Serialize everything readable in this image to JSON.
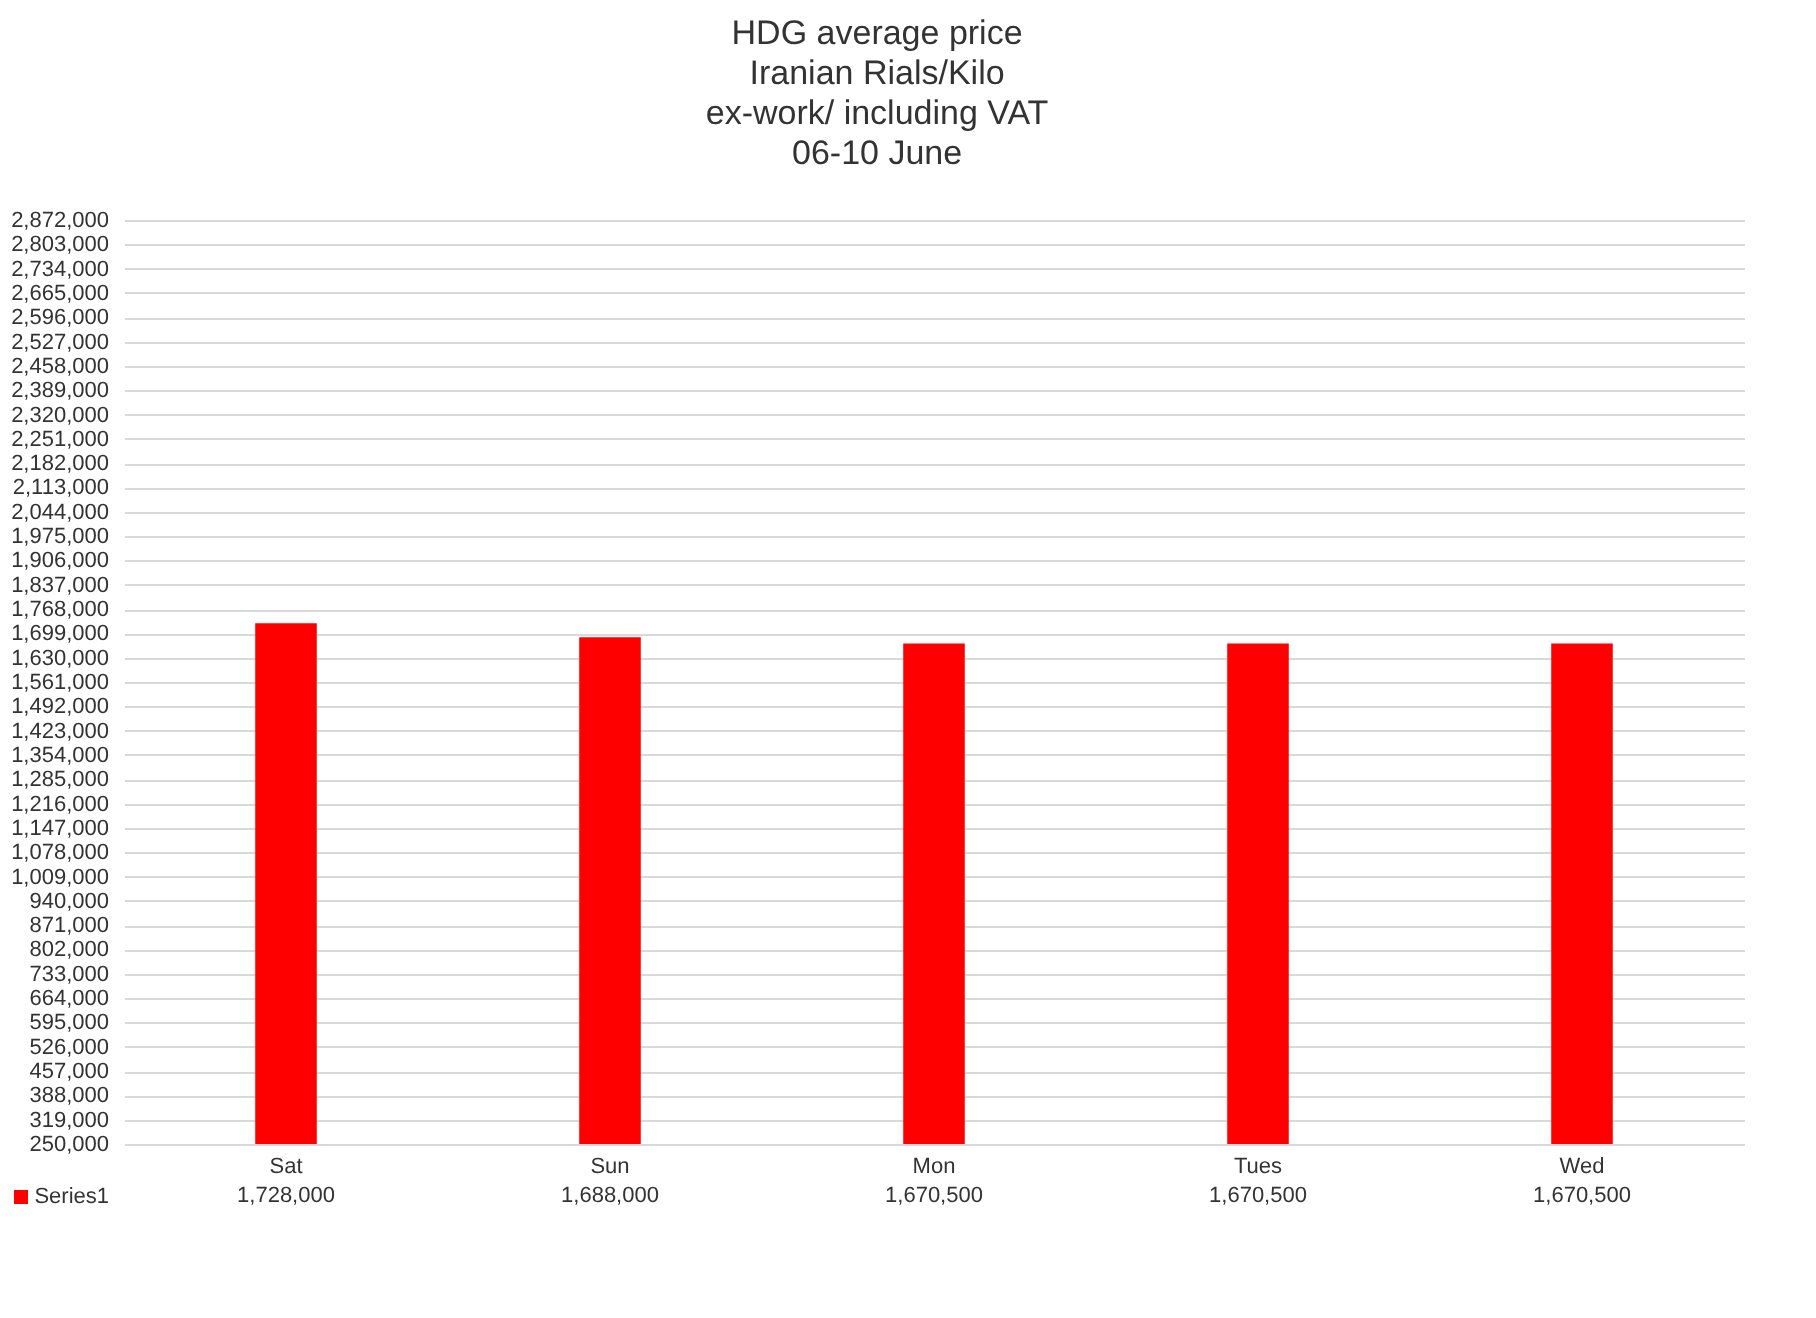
{
  "chart_data": {
    "type": "bar",
    "title": [
      "HDG average price",
      "Iranian Rials/Kilo",
      "ex-work/ including VAT",
      "06-10 June"
    ],
    "categories": [
      "Sat",
      "Sun",
      "Mon",
      "Tues",
      "Wed"
    ],
    "series": [
      {
        "name": "Series1",
        "color": "#ff0000",
        "values": [
          1728000,
          1688000,
          1670500,
          1670500,
          1670500
        ],
        "value_labels": [
          "1,728,000",
          "1,688,000",
          "1,670,500",
          "1,670,500",
          "1,670,500"
        ]
      }
    ],
    "ylim": [
      250000,
      2872000
    ],
    "yticks": [
      {
        "value": 250000,
        "label": "250,000"
      },
      {
        "value": 319000,
        "label": "319,000"
      },
      {
        "value": 388000,
        "label": "388,000"
      },
      {
        "value": 457000,
        "label": "457,000"
      },
      {
        "value": 526000,
        "label": "526,000"
      },
      {
        "value": 595000,
        "label": "595,000"
      },
      {
        "value": 664000,
        "label": "664,000"
      },
      {
        "value": 733000,
        "label": "733,000"
      },
      {
        "value": 802000,
        "label": "802,000"
      },
      {
        "value": 871000,
        "label": "871,000"
      },
      {
        "value": 940000,
        "label": "940,000"
      },
      {
        "value": 1009000,
        "label": "1,009,000"
      },
      {
        "value": 1078000,
        "label": "1,078,000"
      },
      {
        "value": 1147000,
        "label": "1,147,000"
      },
      {
        "value": 1216000,
        "label": "1,216,000"
      },
      {
        "value": 1285000,
        "label": "1,285,000"
      },
      {
        "value": 1354000,
        "label": "1,354,000"
      },
      {
        "value": 1423000,
        "label": "1,423,000"
      },
      {
        "value": 1492000,
        "label": "1,492,000"
      },
      {
        "value": 1561000,
        "label": "1,561,000"
      },
      {
        "value": 1630000,
        "label": "1,630,000"
      },
      {
        "value": 1699000,
        "label": "1,699,000"
      },
      {
        "value": 1768000,
        "label": "1,768,000"
      },
      {
        "value": 1837000,
        "label": "1,837,000"
      },
      {
        "value": 1906000,
        "label": "1,906,000"
      },
      {
        "value": 1975000,
        "label": "1,975,000"
      },
      {
        "value": 2044000,
        "label": "2,044,000"
      },
      {
        "value": 2113000,
        "label": "2,113,000"
      },
      {
        "value": 2182000,
        "label": "2,182,000"
      },
      {
        "value": 2251000,
        "label": "2,251,000"
      },
      {
        "value": 2320000,
        "label": "2,320,000"
      },
      {
        "value": 2389000,
        "label": "2,389,000"
      },
      {
        "value": 2458000,
        "label": "2,458,000"
      },
      {
        "value": 2527000,
        "label": "2,527,000"
      },
      {
        "value": 2596000,
        "label": "2,596,000"
      },
      {
        "value": 2665000,
        "label": "2,665,000"
      },
      {
        "value": 2734000,
        "label": "2,734,000"
      },
      {
        "value": 2803000,
        "label": "2,803,000"
      },
      {
        "value": 2872000,
        "label": "2,872,000"
      }
    ],
    "grid": "y",
    "legend": "bottom"
  }
}
